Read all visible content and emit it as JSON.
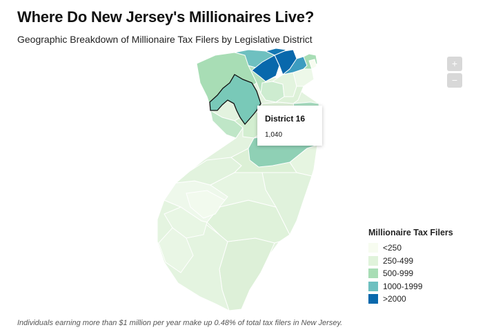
{
  "title": "Where Do New Jersey's Millionaires Live?",
  "subtitle": "Geographic Breakdown of Millionaire Tax Filers by Legislative District",
  "zoom": {
    "in_label": "+",
    "out_label": "−"
  },
  "tooltip": {
    "district": "District 16",
    "value": "1,040"
  },
  "legend": {
    "title": "Millionaire Tax Filers",
    "items": [
      {
        "label": "<250",
        "color": "#f7fcf0"
      },
      {
        "label": "250-499",
        "color": "#e0f3db"
      },
      {
        "label": "500-999",
        "color": "#a8ddb5"
      },
      {
        "label": "1000-1999",
        "color": "#6ec0c0"
      },
      {
        "label": ">2000",
        "color": "#0868ac"
      }
    ]
  },
  "footnote": "Individuals earning more than $1 million per year make up 0.48% of total tax filers in New Jersey."
}
